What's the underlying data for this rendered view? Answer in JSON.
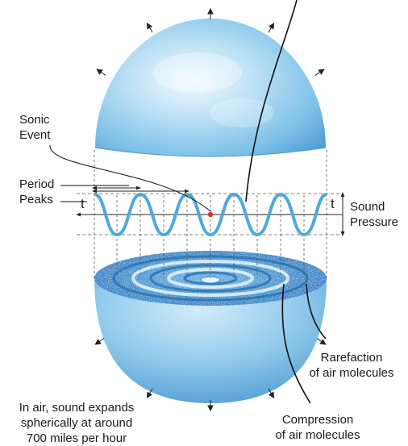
{
  "labels": {
    "sonic_event_l1": "Sonic",
    "sonic_event_l2": "Event",
    "period": "Period",
    "peaks": "Peaks",
    "t_left": "t",
    "t_right": "t",
    "sound_l1": "Sound",
    "sound_l2": "Pressure",
    "rarefaction_l1": "Rarefaction",
    "rarefaction_l2": "of air molecules",
    "compression_l1": "Compression",
    "compression_l2": "of air molecules",
    "caption_l1": "In air, sound expands",
    "caption_l2": "spherically at around",
    "caption_l3": "700 miles per hour"
  },
  "colors": {
    "sphere_light": "#dff1fb",
    "sphere_mid": "#8cc8ea",
    "sphere_dark": "#3d8fcc",
    "wave": "#4ea9dc",
    "event_dot": "#e03030",
    "line": "#222222"
  },
  "icons": [
    "expansion-arrow-icon"
  ]
}
